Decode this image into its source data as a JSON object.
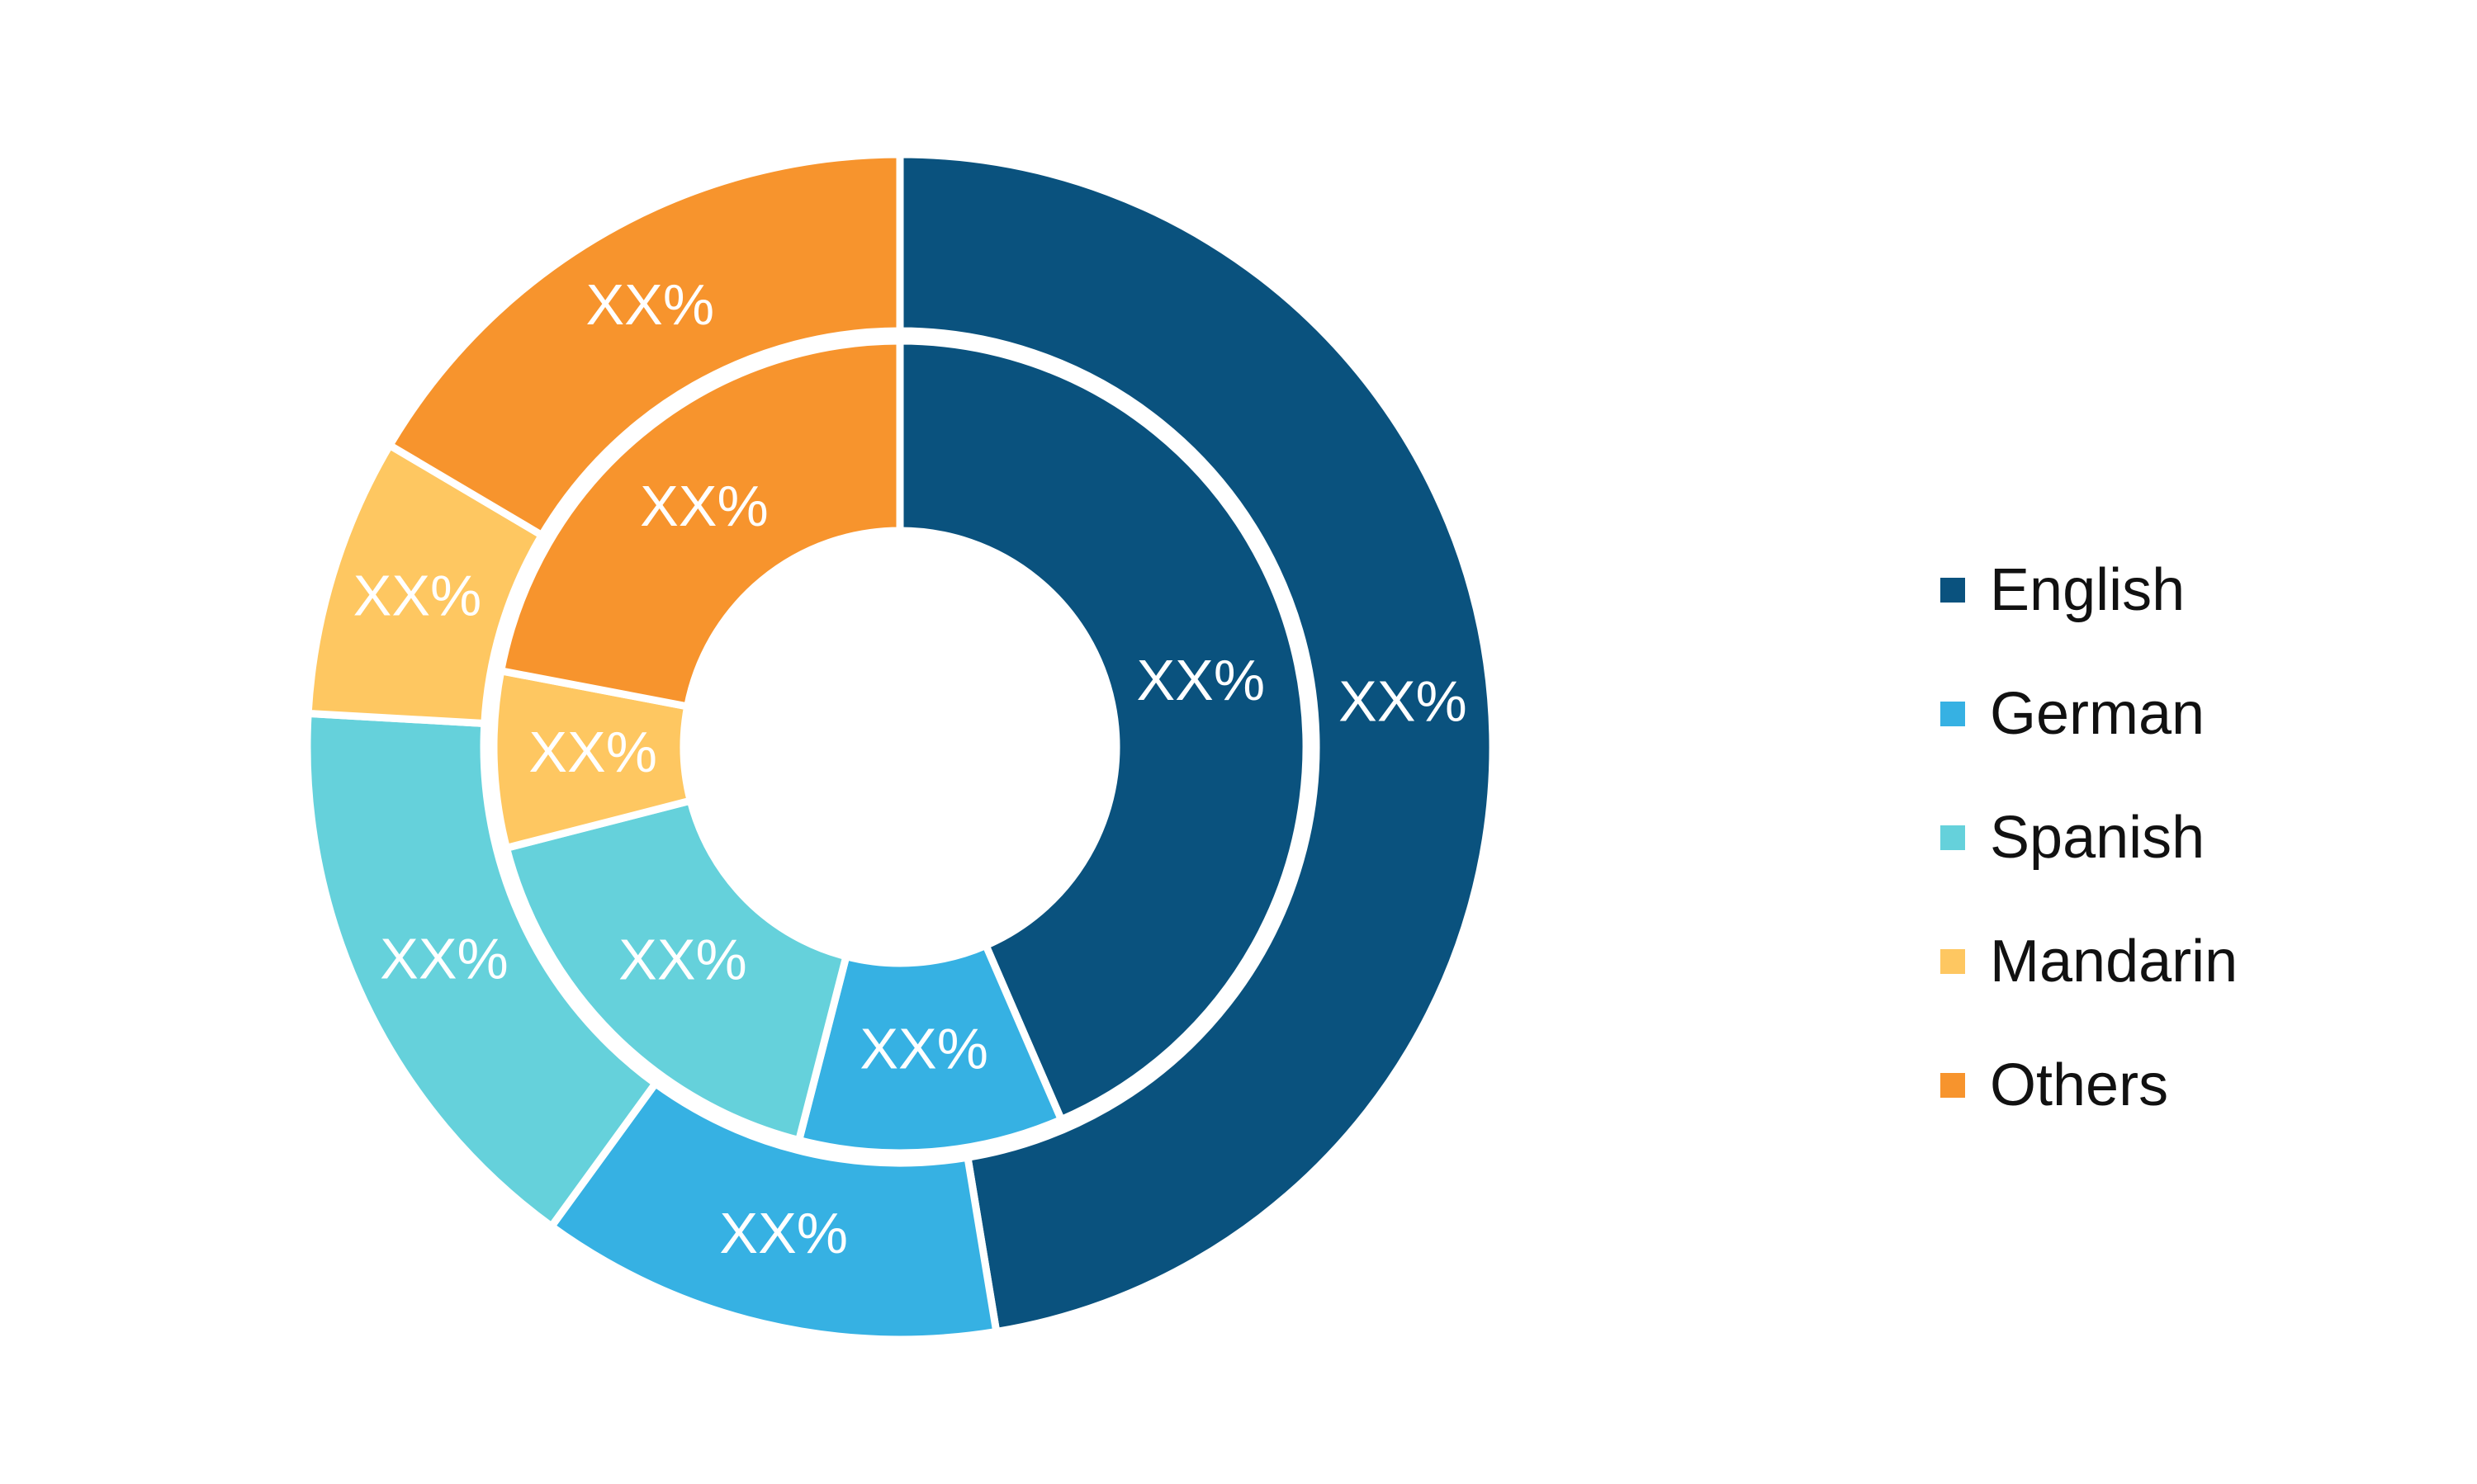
{
  "chart_data": {
    "type": "pie",
    "variant": "nested-donut",
    "title": "",
    "categories": [
      "English",
      "German",
      "Spanish",
      "Mandarin",
      "Others"
    ],
    "colors": {
      "English": "#0a527e",
      "German": "#36b1e3",
      "Spanish": "#65d1db",
      "Mandarin": "#fec761",
      "Others": "#f7942d"
    },
    "series": [
      {
        "ring": "inner",
        "values": [
          43.5,
          10.5,
          17.0,
          7.0,
          22.0
        ],
        "labels": [
          "XX%",
          "XX%",
          "XX%",
          "XX%",
          "XX%"
        ]
      },
      {
        "ring": "outer",
        "values": [
          47.4,
          12.6,
          15.9,
          7.6,
          16.5
        ],
        "labels": [
          "XX%",
          "XX%",
          "XX%",
          "XX%",
          "XX%"
        ]
      }
    ],
    "legend": {
      "position": "right",
      "items": [
        "English",
        "German",
        "Spanish",
        "Mandarin",
        "Others"
      ]
    }
  }
}
